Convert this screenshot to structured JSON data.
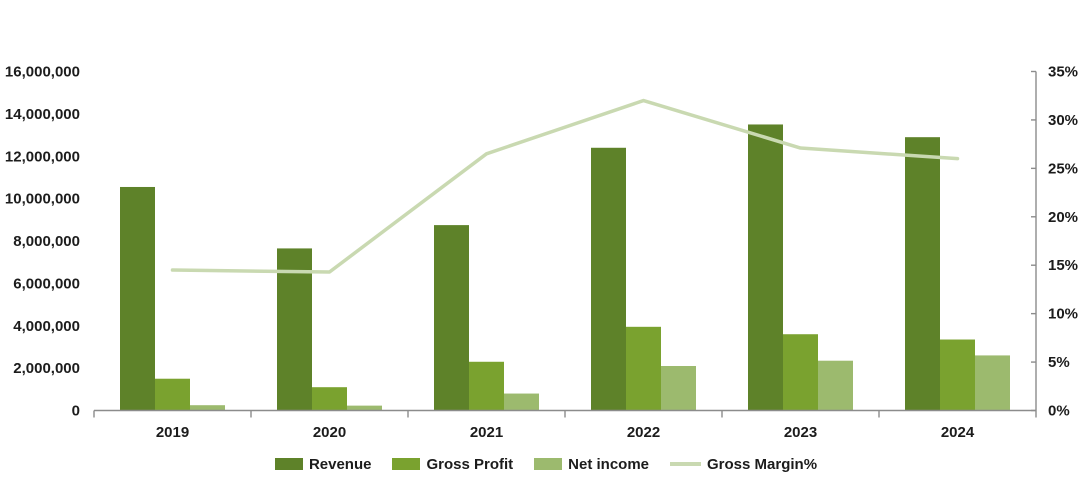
{
  "chart_data": {
    "type": "combo-bar-line",
    "title": "",
    "categories": [
      "2019",
      "2020",
      "2021",
      "2022",
      "2023",
      "2024"
    ],
    "series": [
      {
        "name": "Revenue",
        "type": "bar",
        "axis": "left",
        "color": "#5e8229",
        "values": [
          10550000,
          7650000,
          8750000,
          12400000,
          13500000,
          12900000
        ]
      },
      {
        "name": "Gross Profit",
        "type": "bar",
        "axis": "left",
        "color": "#7aa22f",
        "values": [
          1500000,
          1100000,
          2300000,
          3950000,
          3600000,
          3350000
        ]
      },
      {
        "name": "Net income",
        "type": "bar",
        "axis": "left",
        "color": "#9cba6e",
        "values": [
          250000,
          230000,
          800000,
          2100000,
          2350000,
          2600000
        ]
      },
      {
        "name": "Gross Margin%",
        "type": "line",
        "axis": "right",
        "color": "#c9d9b1",
        "values": [
          14.5,
          14.3,
          26.5,
          32.0,
          27.1,
          26.0
        ]
      }
    ],
    "left_axis": {
      "min": 0,
      "max": 16000000,
      "step": 2000000,
      "labels": [
        "0",
        "2,000,000",
        "4,000,000",
        "6,000,000",
        "8,000,000",
        "10,000,000",
        "12,000,000",
        "14,000,000",
        "16,000,000"
      ]
    },
    "right_axis": {
      "min": 0,
      "max": 35,
      "step": 5,
      "labels": [
        "0%",
        "5%",
        "10%",
        "15%",
        "20%",
        "25%",
        "30%",
        "35%"
      ]
    },
    "legend_position": "bottom",
    "gridlines": false
  },
  "style": {
    "axis_line_color": "#8c8c8c",
    "text_color": "#1c1c1c",
    "background": "#ffffff"
  }
}
